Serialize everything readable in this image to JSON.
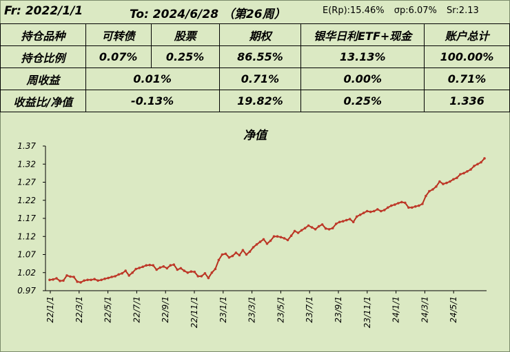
{
  "header": {
    "from": "Fr: 2022/1/1",
    "to": "To: 2024/6/28 （第26周）",
    "e_rp": "E(Rp):15.46%",
    "sigma_p": "σp:6.07%",
    "sharpe": "Sr:2.13"
  },
  "table": {
    "row1": {
      "label": "持仓品种",
      "c1": "可转债",
      "c2": "股票",
      "c3": "期权",
      "c4": "银华日利ETF+现金",
      "c5": "账户总计"
    },
    "row2": {
      "label": "持仓比例",
      "c1": "0.07%",
      "c2": "0.25%",
      "c3": "86.55%",
      "c4": "13.13%",
      "c5": "100.00%"
    },
    "row3": {
      "label": "周收益",
      "c12": "0.01%",
      "c3": "0.71%",
      "c4": "0.00%",
      "c5": "0.71%"
    },
    "row4": {
      "label": "收益比/净值",
      "c12": "-0.13%",
      "c3": "19.82%",
      "c4": "0.25%",
      "c5": "1.336"
    }
  },
  "colors": {
    "background": "#dbe9c3",
    "line": "#b5301c",
    "marker": "#c0392b"
  },
  "chart_data": {
    "type": "line",
    "title": "净值",
    "yticks": [
      "1.37",
      "1.32",
      "1.27",
      "1.22",
      "1.17",
      "1.12",
      "1.07",
      "1.02",
      "0.97"
    ],
    "ylim": [
      0.97,
      1.37
    ],
    "xticks": [
      "22/1/1",
      "22/3/1",
      "22/5/1",
      "22/7/1",
      "22/9/1",
      "22/11/1",
      "23/1/1",
      "23/3/1",
      "23/5/1",
      "23/7/1",
      "23/9/1",
      "23/11/1",
      "24/1/1",
      "24/3/1",
      "24/5/1"
    ],
    "grid": false,
    "series": [
      {
        "name": "",
        "values": [
          1.0,
          1.001,
          1.004,
          0.997,
          0.998,
          1.012,
          1.009,
          1.008,
          0.995,
          0.993,
          0.998,
          1.0,
          1.0,
          1.002,
          0.998,
          1.0,
          1.003,
          1.005,
          1.008,
          1.01,
          1.015,
          1.018,
          1.025,
          1.012,
          1.02,
          1.03,
          1.033,
          1.036,
          1.04,
          1.041,
          1.04,
          1.028,
          1.034,
          1.037,
          1.032,
          1.04,
          1.042,
          1.028,
          1.032,
          1.025,
          1.02,
          1.023,
          1.022,
          1.01,
          1.01,
          1.018,
          1.005,
          1.02,
          1.03,
          1.055,
          1.07,
          1.072,
          1.062,
          1.066,
          1.075,
          1.068,
          1.082,
          1.07,
          1.078,
          1.09,
          1.098,
          1.105,
          1.112,
          1.1,
          1.108,
          1.12,
          1.12,
          1.118,
          1.115,
          1.11,
          1.122,
          1.135,
          1.13,
          1.137,
          1.143,
          1.15,
          1.145,
          1.14,
          1.148,
          1.153,
          1.142,
          1.14,
          1.143,
          1.155,
          1.16,
          1.162,
          1.165,
          1.168,
          1.16,
          1.175,
          1.18,
          1.185,
          1.19,
          1.188,
          1.19,
          1.195,
          1.19,
          1.193,
          1.2,
          1.205,
          1.208,
          1.212,
          1.215,
          1.213,
          1.2,
          1.2,
          1.203,
          1.205,
          1.21,
          1.232,
          1.245,
          1.25,
          1.258,
          1.272,
          1.265,
          1.268,
          1.272,
          1.278,
          1.282,
          1.292,
          1.295,
          1.3,
          1.305,
          1.315,
          1.32,
          1.325,
          1.336
        ]
      }
    ]
  }
}
